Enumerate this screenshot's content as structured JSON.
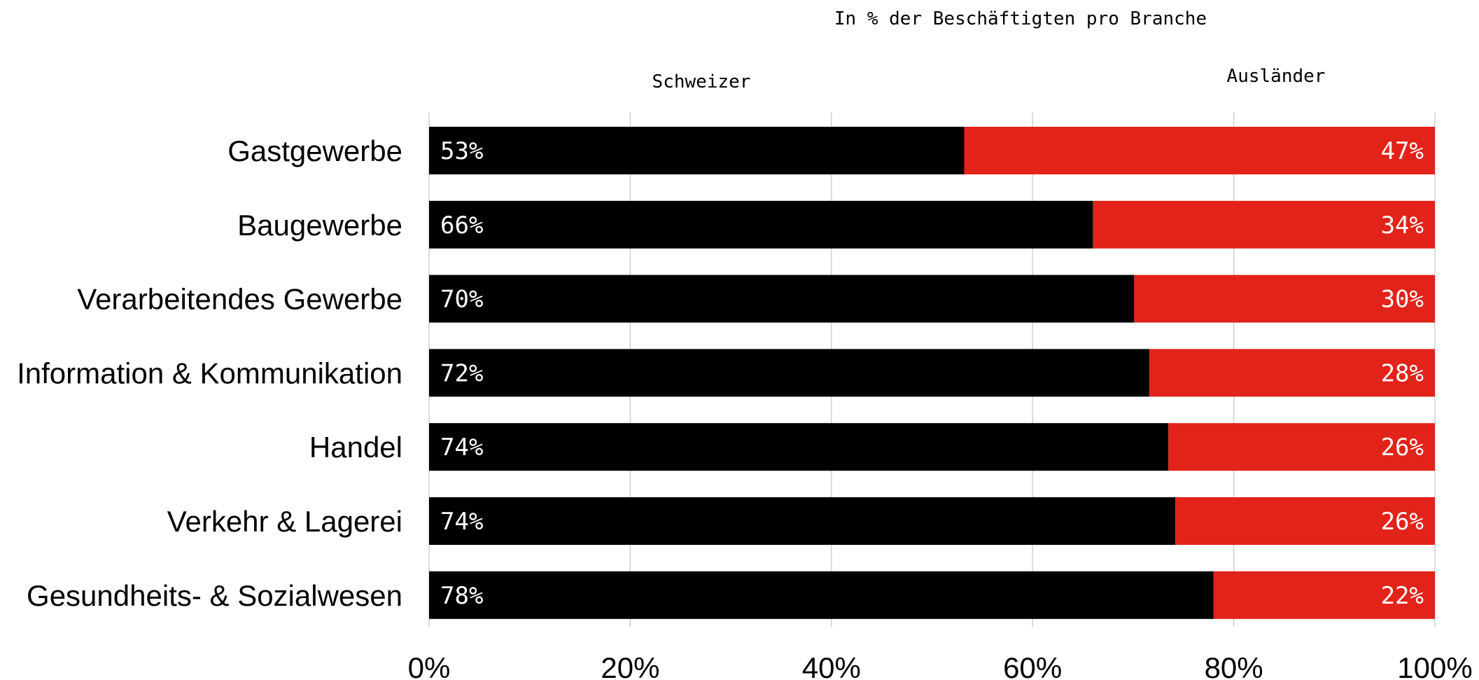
{
  "chart_data": {
    "type": "bar",
    "orientation": "horizontal",
    "stacked": true,
    "subtitle": "In % der Beschäftigten pro Branche",
    "categories": [
      "Gastgewerbe",
      "Baugewerbe",
      "Verarbeitendes Gewerbe",
      "Information & Kommunikation",
      "Handel",
      "Verkehr & Lagerei",
      "Gesundheits- & Sozialwesen"
    ],
    "series": [
      {
        "name": "Schweizer",
        "color": "#000000",
        "values": [
          53.2,
          66.0,
          70.1,
          71.6,
          73.5,
          74.2,
          78.0
        ],
        "labels": [
          "53%",
          "66%",
          "70%",
          "72%",
          "74%",
          "74%",
          "78%"
        ]
      },
      {
        "name": "Ausländer",
        "color": "#e2231a",
        "values": [
          46.8,
          34.0,
          29.9,
          28.4,
          26.5,
          25.8,
          22.0
        ],
        "labels": [
          "47%",
          "34%",
          "30%",
          "28%",
          "26%",
          "26%",
          "22%"
        ]
      }
    ],
    "xlim": [
      0,
      100
    ],
    "xticks": [
      "0%",
      "20%",
      "40%",
      "60%",
      "80%",
      "100%"
    ],
    "grid": true,
    "legend": "top, above the bars"
  }
}
